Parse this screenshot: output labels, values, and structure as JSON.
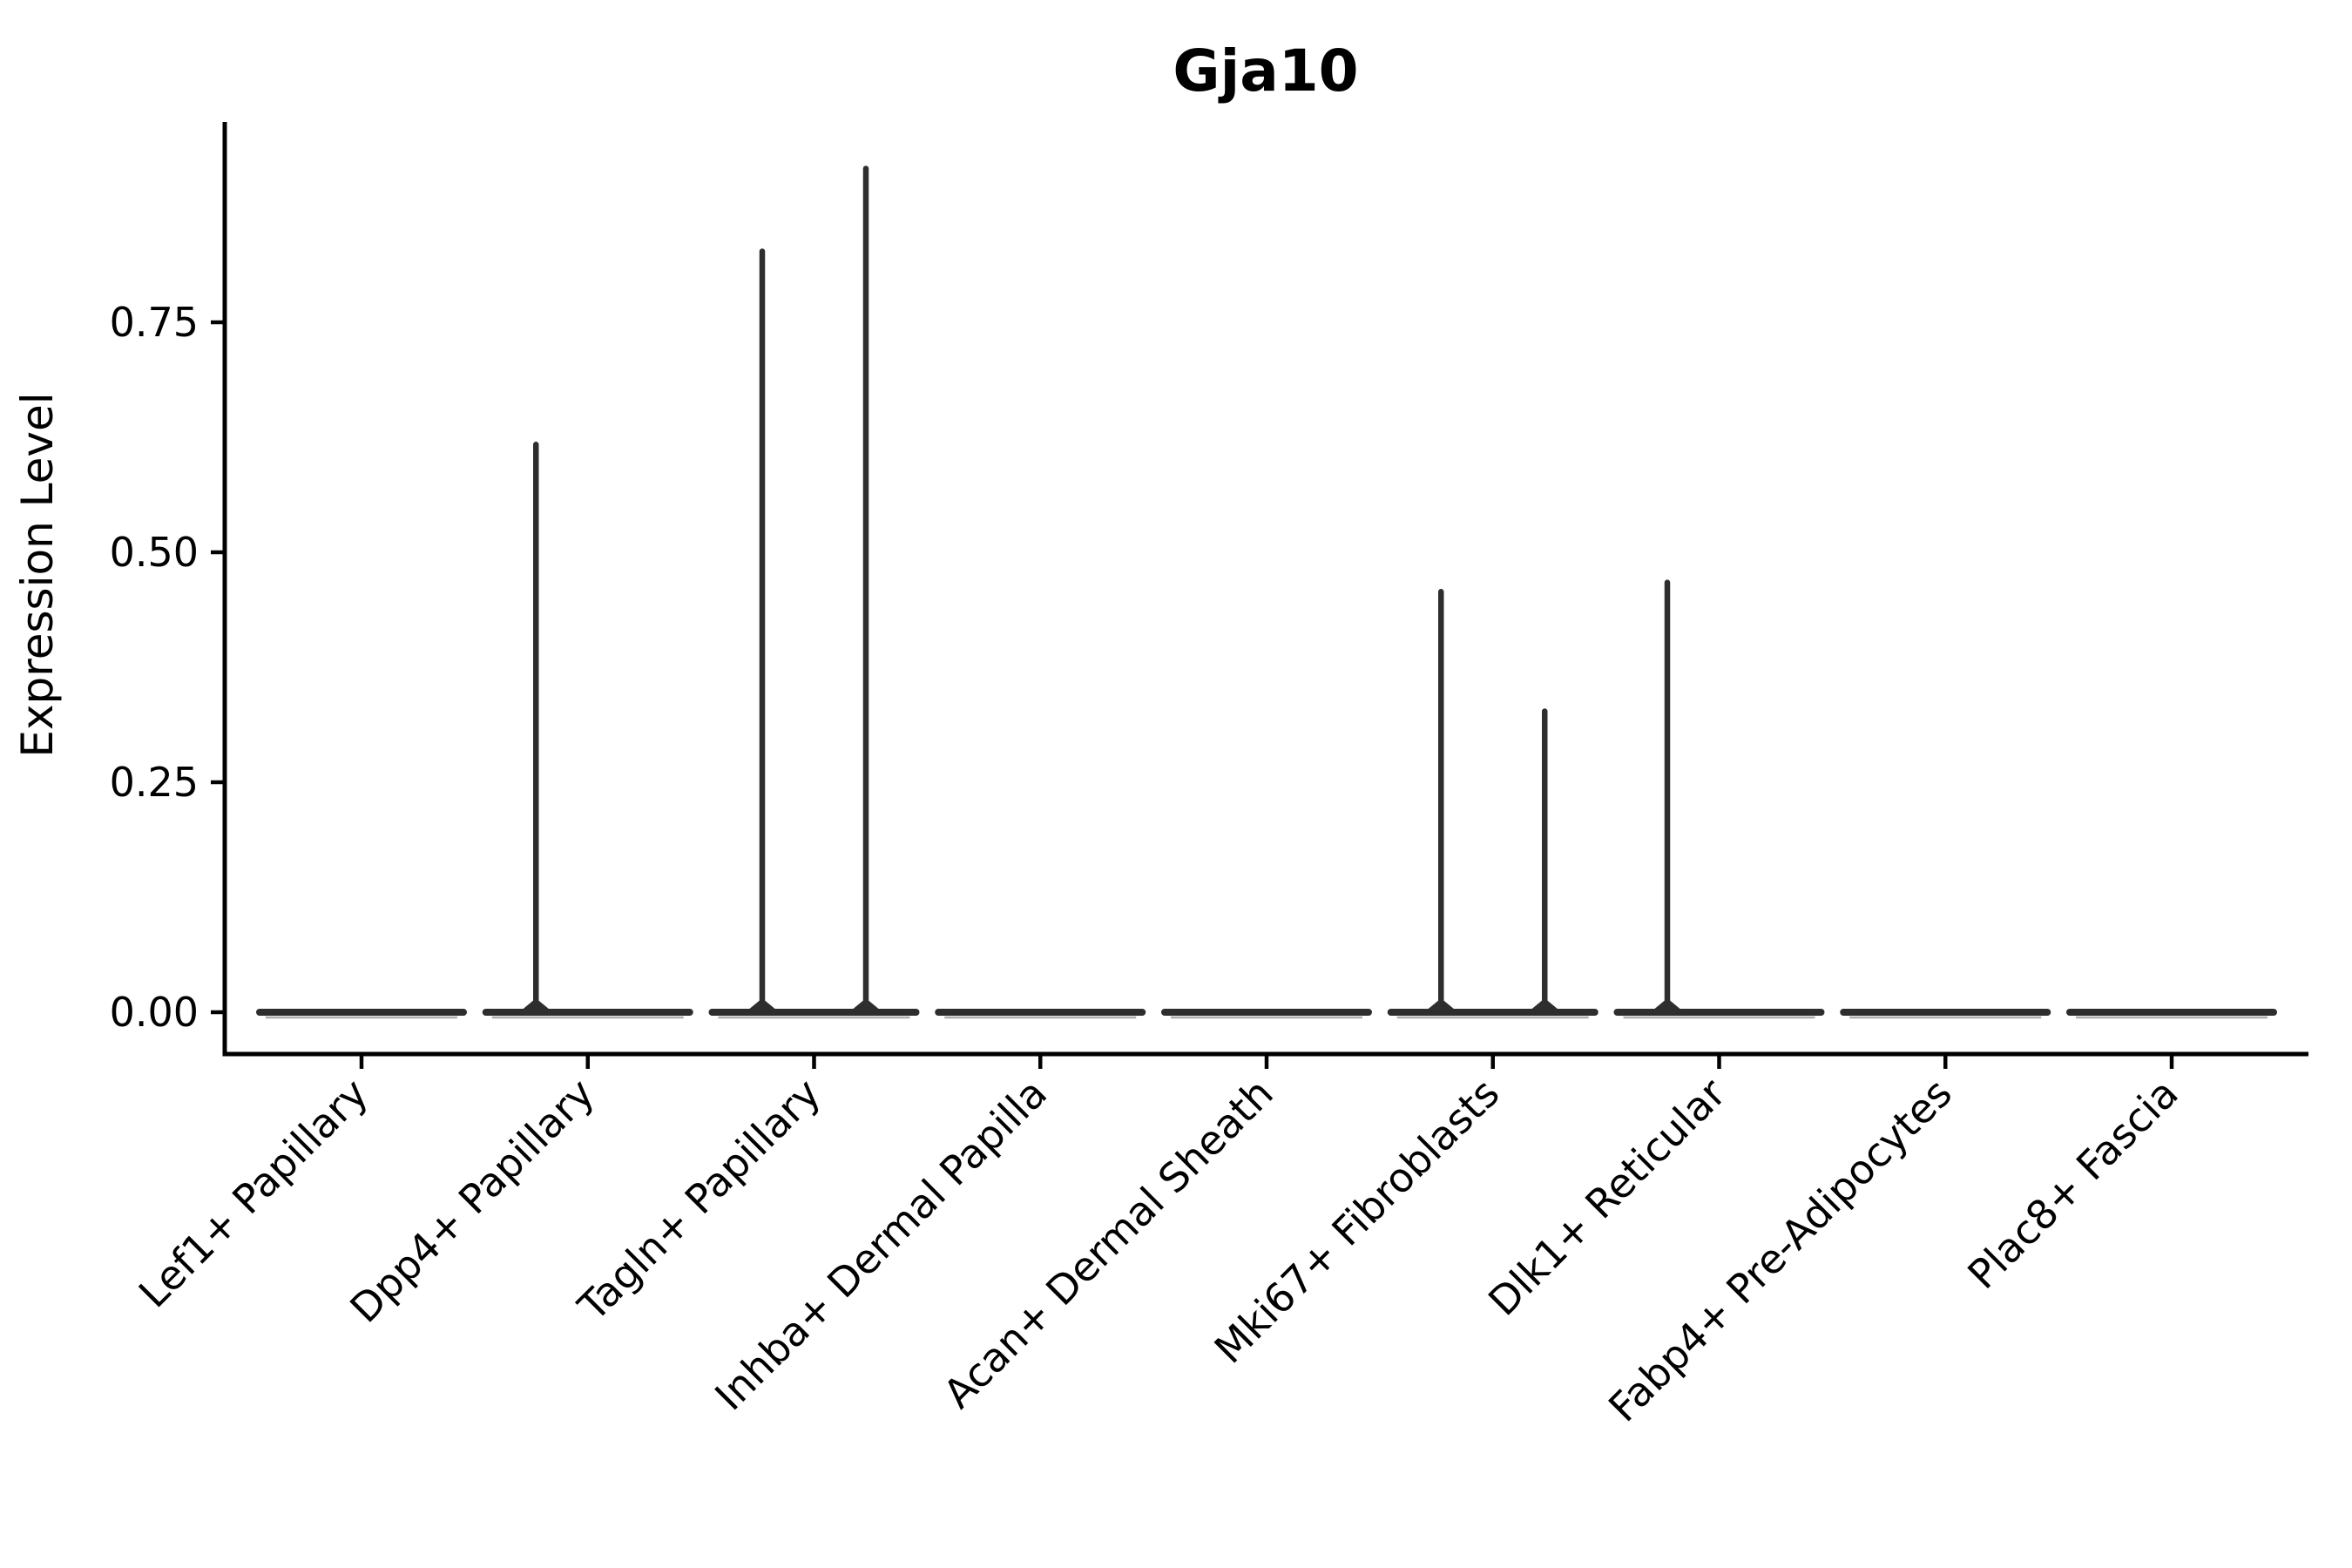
{
  "chart_data": {
    "type": "violin",
    "title": "Gja10",
    "xlabel": "",
    "ylabel": "Expression Level",
    "categories": [
      "Lef1+ Papillary",
      "Dpp4+ Papillary",
      "Tagln+ Papillary",
      "Inhba+ Dermal Papilla",
      "Acan+ Dermal Sheath",
      "Mki67+ Fibroblasts",
      "Dlk1+ Reticular",
      "Fabp4+ Pre-Adipocytes",
      "Plac8+ Fascia"
    ],
    "ytick_labels": [
      "0.00",
      "0.25",
      "0.50",
      "0.75"
    ],
    "ytick_values": [
      0.0,
      0.25,
      0.5,
      0.75
    ],
    "ylim": [
      0.0,
      0.97
    ],
    "grid": false,
    "legend_position": "none",
    "groups_per_category": 2,
    "violins": [
      {
        "category": "Lef1+ Papillary",
        "baseline_value": 0.0,
        "spikes": []
      },
      {
        "category": "Dpp4+ Papillary",
        "baseline_value": 0.0,
        "spikes": [
          {
            "position": "left",
            "max_expression": 0.62
          }
        ]
      },
      {
        "category": "Tagln+ Papillary",
        "baseline_value": 0.0,
        "spikes": [
          {
            "position": "left",
            "max_expression": 0.83
          },
          {
            "position": "right",
            "max_expression": 0.92
          }
        ]
      },
      {
        "category": "Inhba+ Dermal Papilla",
        "baseline_value": 0.0,
        "spikes": []
      },
      {
        "category": "Acan+ Dermal Sheath",
        "baseline_value": 0.0,
        "spikes": []
      },
      {
        "category": "Mki67+ Fibroblasts",
        "baseline_value": 0.0,
        "spikes": [
          {
            "position": "left",
            "max_expression": 0.46
          },
          {
            "position": "right",
            "max_expression": 0.33
          }
        ]
      },
      {
        "category": "Dlk1+ Reticular",
        "baseline_value": 0.0,
        "spikes": [
          {
            "position": "left",
            "max_expression": 0.47
          }
        ]
      },
      {
        "category": "Fabp4+ Pre-Adipocytes",
        "baseline_value": 0.0,
        "spikes": []
      },
      {
        "category": "Plac8+ Fascia",
        "baseline_value": 0.0,
        "spikes": []
      }
    ],
    "colors": {
      "violin": "#2e2e2e",
      "violin_fill_edge": "#999999",
      "axis": "#000000",
      "text": "#000000",
      "background": "#ffffff"
    }
  }
}
